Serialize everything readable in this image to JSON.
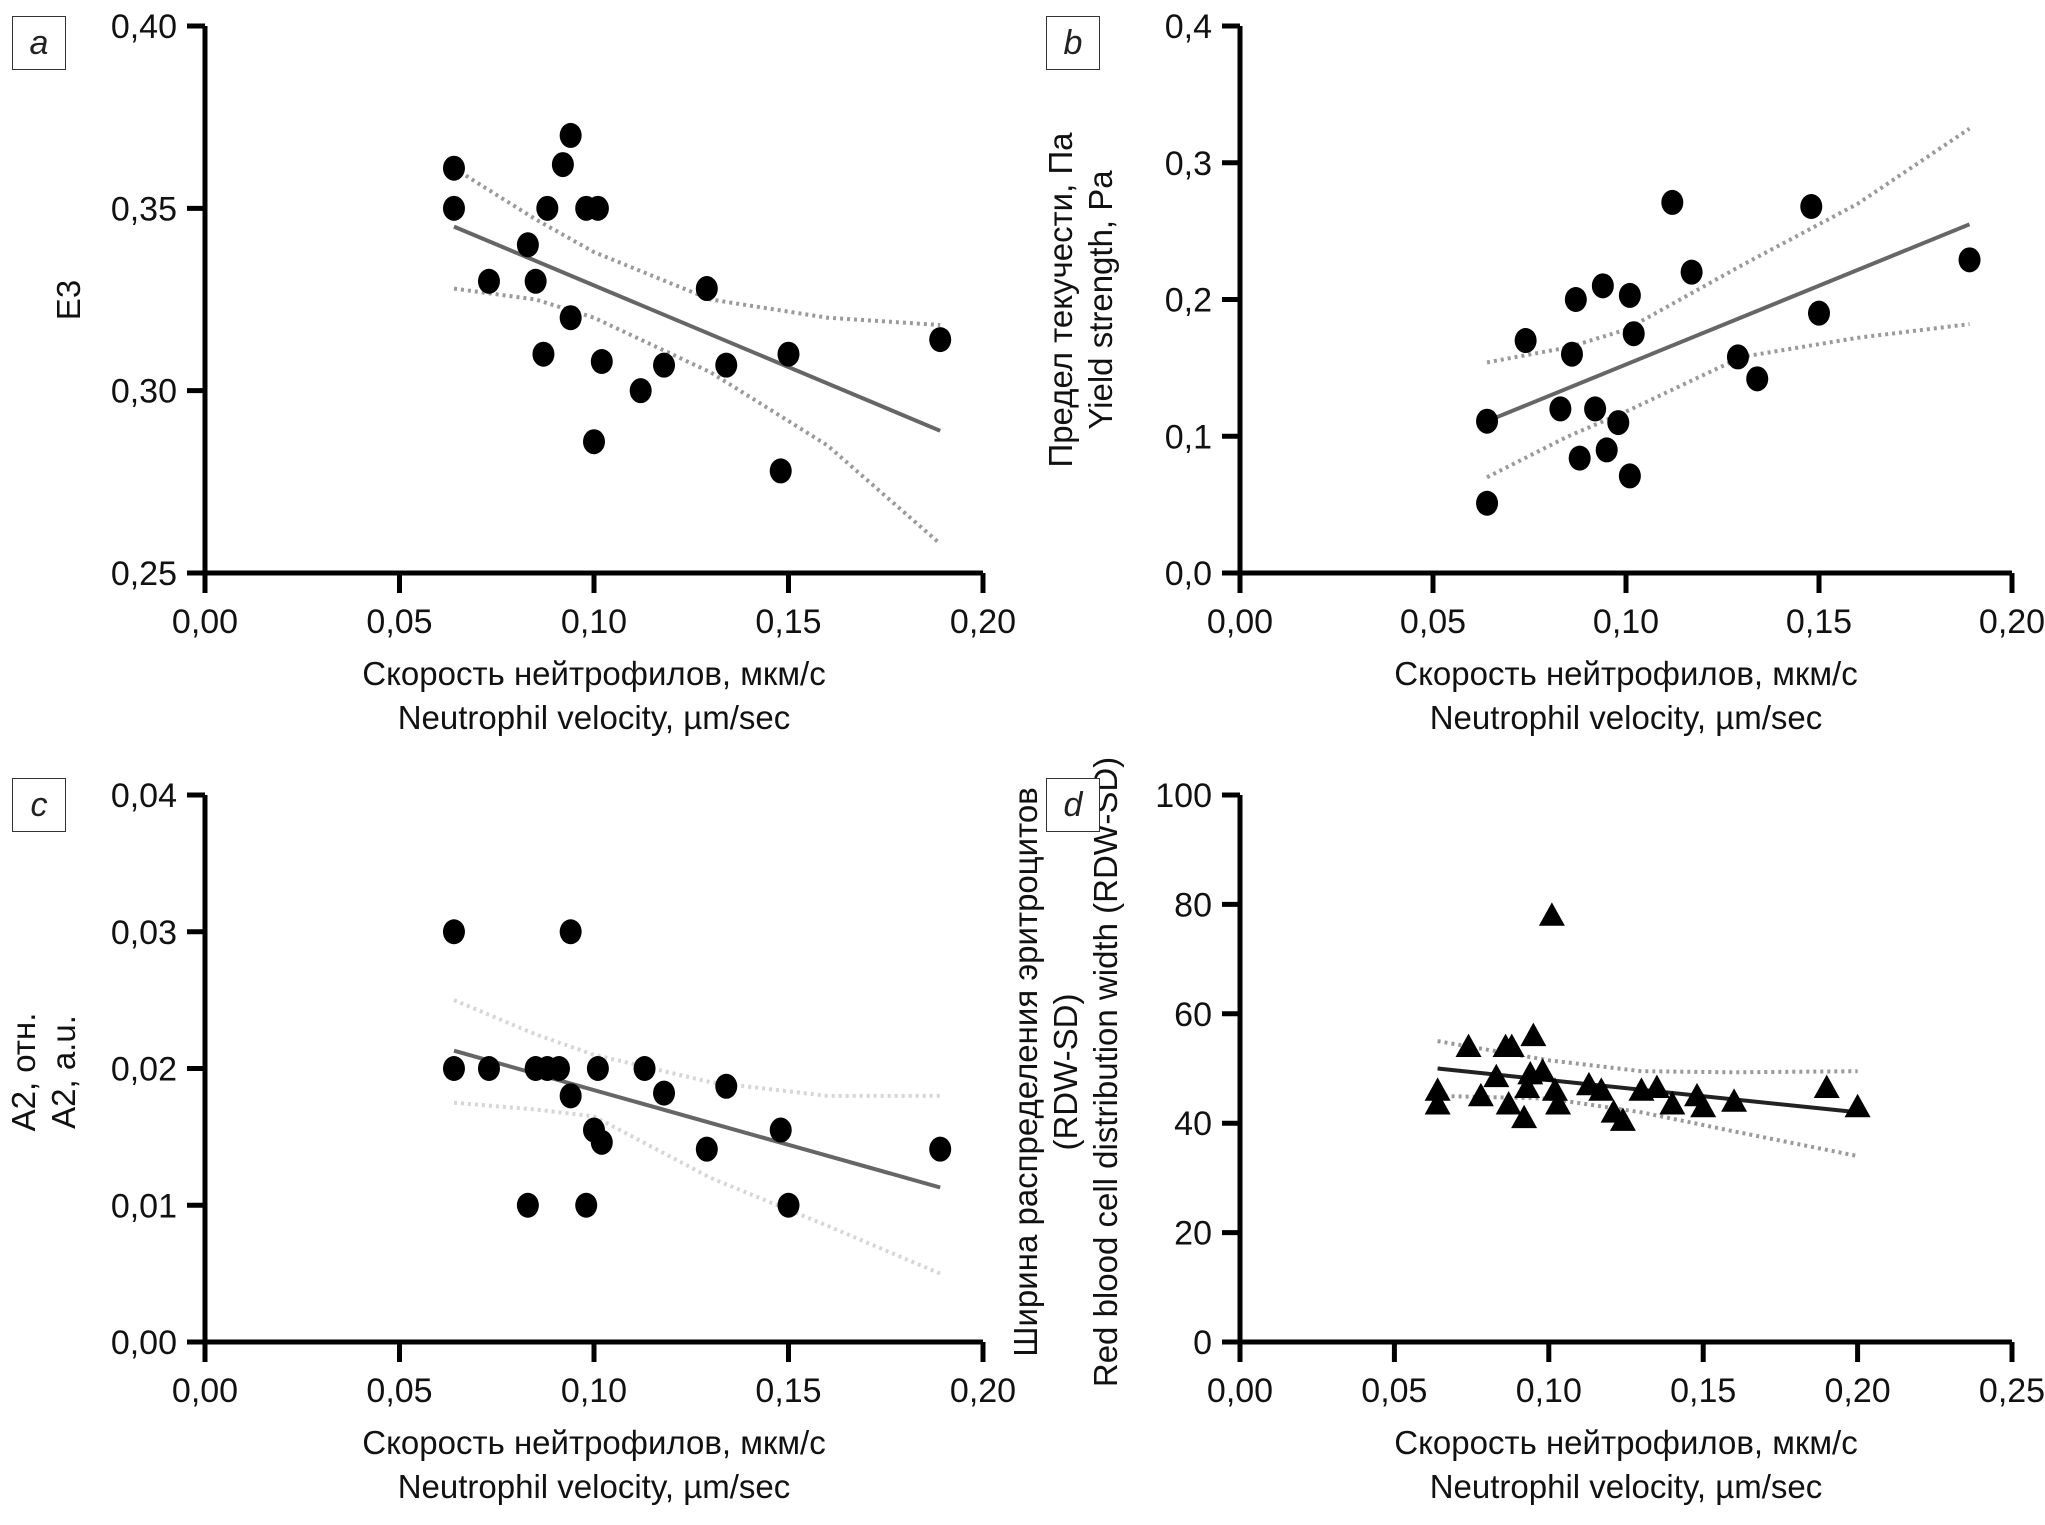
{
  "figure": {
    "x_title_ru": "Скорость нейтрофилов, мкм/с",
    "x_title_en": "Neutrophil velocity, µm/sec"
  },
  "chart_data": [
    {
      "id": "a",
      "type": "scatter",
      "panel_label": "a",
      "marker": "circle",
      "title": "",
      "ylabel_lines": [
        "E3"
      ],
      "xlabel_lines": [
        "Скорость нейтрофилов, мкм/с",
        "Neutrophil velocity, µm/sec"
      ],
      "xlim": [
        0,
        0.2
      ],
      "ylim": [
        0.25,
        0.4
      ],
      "xticks": [
        0,
        0.05,
        0.1,
        0.15,
        0.2
      ],
      "xtick_labels": [
        "0,00",
        "0,05",
        "0,10",
        "0,15",
        "0,20"
      ],
      "yticks": [
        0.25,
        0.3,
        0.35,
        0.4
      ],
      "ytick_labels": [
        "0,25",
        "0,30",
        "0,35",
        "0,40"
      ],
      "grid": false,
      "points": [
        [
          0.064,
          0.361
        ],
        [
          0.064,
          0.35
        ],
        [
          0.073,
          0.33
        ],
        [
          0.083,
          0.34
        ],
        [
          0.085,
          0.33
        ],
        [
          0.087,
          0.31
        ],
        [
          0.088,
          0.35
        ],
        [
          0.092,
          0.362
        ],
        [
          0.094,
          0.32
        ],
        [
          0.094,
          0.37
        ],
        [
          0.098,
          0.35
        ],
        [
          0.1,
          0.286
        ],
        [
          0.101,
          0.35
        ],
        [
          0.102,
          0.308
        ],
        [
          0.112,
          0.3
        ],
        [
          0.118,
          0.307
        ],
        [
          0.129,
          0.328
        ],
        [
          0.134,
          0.307
        ],
        [
          0.148,
          0.278
        ],
        [
          0.15,
          0.31
        ],
        [
          0.189,
          0.314
        ]
      ],
      "regression": [
        [
          0.064,
          0.345
        ],
        [
          0.189,
          0.289
        ]
      ],
      "ci_upper": [
        [
          0.064,
          0.361
        ],
        [
          0.085,
          0.347
        ],
        [
          0.1,
          0.338
        ],
        [
          0.13,
          0.325
        ],
        [
          0.16,
          0.32
        ],
        [
          0.189,
          0.318
        ]
      ],
      "ci_lower": [
        [
          0.064,
          0.328
        ],
        [
          0.085,
          0.325
        ],
        [
          0.1,
          0.32
        ],
        [
          0.13,
          0.305
        ],
        [
          0.16,
          0.285
        ],
        [
          0.189,
          0.258
        ]
      ]
    },
    {
      "id": "b",
      "type": "scatter",
      "panel_label": "b",
      "marker": "circle",
      "title": "",
      "ylabel_lines": [
        "Предел текучести, Па",
        "Yield strength, Pa"
      ],
      "xlabel_lines": [
        "Скорость нейтрофилов, мкм/с",
        "Neutrophil velocity, µm/sec"
      ],
      "xlim": [
        0,
        0.2
      ],
      "ylim": [
        0,
        0.4
      ],
      "xticks": [
        0,
        0.05,
        0.1,
        0.15,
        0.2
      ],
      "xtick_labels": [
        "0,00",
        "0,05",
        "0,10",
        "0,15",
        "0,20"
      ],
      "yticks": [
        0,
        0.1,
        0.2,
        0.3,
        0.4
      ],
      "ytick_labels": [
        "0,0",
        "0,1",
        "0,2",
        "0,3",
        "0,4"
      ],
      "grid": false,
      "points": [
        [
          0.064,
          0.111
        ],
        [
          0.064,
          0.051
        ],
        [
          0.074,
          0.17
        ],
        [
          0.083,
          0.12
        ],
        [
          0.086,
          0.16
        ],
        [
          0.087,
          0.2
        ],
        [
          0.088,
          0.084
        ],
        [
          0.092,
          0.12
        ],
        [
          0.094,
          0.21
        ],
        [
          0.095,
          0.09
        ],
        [
          0.098,
          0.11
        ],
        [
          0.101,
          0.203
        ],
        [
          0.101,
          0.071
        ],
        [
          0.102,
          0.175
        ],
        [
          0.112,
          0.271
        ],
        [
          0.117,
          0.22
        ],
        [
          0.129,
          0.158
        ],
        [
          0.134,
          0.142
        ],
        [
          0.148,
          0.268
        ],
        [
          0.15,
          0.19
        ],
        [
          0.189,
          0.229
        ]
      ],
      "regression": [
        [
          0.064,
          0.111
        ],
        [
          0.189,
          0.255
        ]
      ],
      "ci_upper": [
        [
          0.064,
          0.154
        ],
        [
          0.085,
          0.165
        ],
        [
          0.1,
          0.178
        ],
        [
          0.13,
          0.225
        ],
        [
          0.16,
          0.27
        ],
        [
          0.189,
          0.325
        ]
      ],
      "ci_lower": [
        [
          0.064,
          0.07
        ],
        [
          0.085,
          0.1
        ],
        [
          0.1,
          0.118
        ],
        [
          0.13,
          0.158
        ],
        [
          0.16,
          0.172
        ],
        [
          0.189,
          0.182
        ]
      ]
    },
    {
      "id": "c",
      "type": "scatter",
      "panel_label": "c",
      "marker": "circle",
      "title": "",
      "ylabel_lines": [
        "A2, отн.",
        "A2, a.u."
      ],
      "xlabel_lines": [
        "Скорость нейтрофилов, мкм/с",
        "Neutrophil velocity, µm/sec"
      ],
      "xlim": [
        0,
        0.2
      ],
      "ylim": [
        0,
        0.04
      ],
      "xticks": [
        0,
        0.05,
        0.1,
        0.15,
        0.2
      ],
      "xtick_labels": [
        "0,00",
        "0,05",
        "0,10",
        "0,15",
        "0,20"
      ],
      "yticks": [
        0,
        0.01,
        0.02,
        0.03,
        0.04
      ],
      "ytick_labels": [
        "0,00",
        "0,01",
        "0,02",
        "0,03",
        "0,04"
      ],
      "grid": false,
      "points": [
        [
          0.064,
          0.03
        ],
        [
          0.064,
          0.02
        ],
        [
          0.073,
          0.02
        ],
        [
          0.083,
          0.01
        ],
        [
          0.085,
          0.02
        ],
        [
          0.088,
          0.02
        ],
        [
          0.091,
          0.02
        ],
        [
          0.094,
          0.03
        ],
        [
          0.094,
          0.018
        ],
        [
          0.098,
          0.01
        ],
        [
          0.1,
          0.0155
        ],
        [
          0.101,
          0.02
        ],
        [
          0.102,
          0.0146
        ],
        [
          0.113,
          0.02
        ],
        [
          0.118,
          0.0182
        ],
        [
          0.129,
          0.0141
        ],
        [
          0.134,
          0.0187
        ],
        [
          0.148,
          0.0155
        ],
        [
          0.15,
          0.01
        ],
        [
          0.189,
          0.0141
        ]
      ],
      "regression": [
        [
          0.064,
          0.0213
        ],
        [
          0.189,
          0.0113
        ]
      ],
      "ci_upper": [
        [
          0.064,
          0.025
        ],
        [
          0.085,
          0.0225
        ],
        [
          0.1,
          0.021
        ],
        [
          0.13,
          0.019
        ],
        [
          0.16,
          0.018
        ],
        [
          0.189,
          0.018
        ]
      ],
      "ci_lower": [
        [
          0.064,
          0.0175
        ],
        [
          0.085,
          0.017
        ],
        [
          0.1,
          0.0165
        ],
        [
          0.13,
          0.012
        ],
        [
          0.16,
          0.0085
        ],
        [
          0.189,
          0.005
        ]
      ]
    },
    {
      "id": "d",
      "type": "scatter",
      "panel_label": "d",
      "marker": "triangle",
      "title": "",
      "ylabel_lines": [
        "Ширина распределения эритроцитов",
        "(RDW-SD)",
        "Red blood cell distribution width (RDW-SD)"
      ],
      "xlabel_lines": [
        "Скорость нейтрофилов, мкм/с",
        "Neutrophil velocity, µm/sec"
      ],
      "xlim": [
        0,
        0.25
      ],
      "ylim": [
        0,
        100
      ],
      "xticks": [
        0,
        0.05,
        0.1,
        0.15,
        0.2,
        0.25
      ],
      "xtick_labels": [
        "0,00",
        "0,05",
        "0,10",
        "0,15",
        "0,20",
        "0,25"
      ],
      "yticks": [
        0,
        20,
        40,
        60,
        80,
        100
      ],
      "ytick_labels": [
        "0",
        "20",
        "40",
        "60",
        "80",
        "100"
      ],
      "grid": false,
      "points": [
        [
          0.064,
          46
        ],
        [
          0.064,
          43.5
        ],
        [
          0.074,
          54
        ],
        [
          0.078,
          45
        ],
        [
          0.083,
          48.5
        ],
        [
          0.086,
          54
        ],
        [
          0.087,
          43.5
        ],
        [
          0.088,
          54
        ],
        [
          0.092,
          41
        ],
        [
          0.093,
          46.5
        ],
        [
          0.094,
          49
        ],
        [
          0.095,
          56
        ],
        [
          0.098,
          49.5
        ],
        [
          0.101,
          78
        ],
        [
          0.102,
          46
        ],
        [
          0.103,
          43.5
        ],
        [
          0.113,
          47
        ],
        [
          0.117,
          46
        ],
        [
          0.121,
          42
        ],
        [
          0.124,
          40.5
        ],
        [
          0.13,
          46
        ],
        [
          0.135,
          46.5
        ],
        [
          0.14,
          43.5
        ],
        [
          0.148,
          45
        ],
        [
          0.15,
          43
        ],
        [
          0.16,
          44
        ],
        [
          0.19,
          46.5
        ],
        [
          0.2,
          43
        ]
      ],
      "regression": [
        [
          0.064,
          50
        ],
        [
          0.2,
          42
        ]
      ],
      "ci_upper": [
        [
          0.064,
          55
        ],
        [
          0.1,
          51.5
        ],
        [
          0.13,
          49.5
        ],
        [
          0.16,
          49.3
        ],
        [
          0.2,
          49.5
        ]
      ],
      "ci_lower": [
        [
          0.064,
          45
        ],
        [
          0.1,
          44.5
        ],
        [
          0.13,
          42
        ],
        [
          0.16,
          38.5
        ],
        [
          0.2,
          34
        ]
      ]
    }
  ]
}
